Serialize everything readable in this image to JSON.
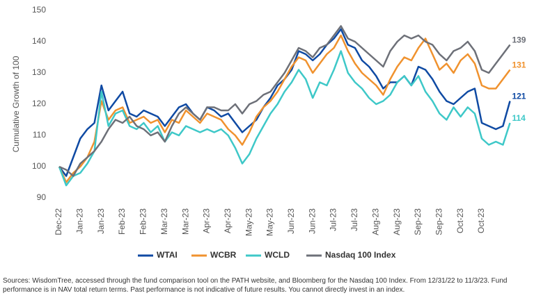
{
  "chart_data": {
    "type": "line",
    "y_axis_label": "Cumulative Growth of 100",
    "categories": [
      "Dec-22",
      null,
      null,
      "Jan-23",
      null,
      null,
      "Jan-23",
      null,
      null,
      "Feb-23",
      null,
      null,
      "Feb-23",
      null,
      null,
      "Mar-23",
      null,
      null,
      "Mar-23",
      null,
      null,
      "Apr-23",
      null,
      null,
      "Apr-23",
      null,
      null,
      "May-23",
      null,
      null,
      "May-23",
      null,
      null,
      "Jun-23",
      null,
      null,
      "Jun-23",
      null,
      null,
      "Jul-23",
      null,
      null,
      "Jul-23",
      null,
      null,
      "Aug-23",
      null,
      null,
      "Aug-23",
      null,
      null,
      "Sep-23",
      null,
      null,
      "Sep-23",
      null,
      null,
      "Oct-23",
      null,
      null,
      "Oct-23",
      null,
      null,
      null,
      null
    ],
    "series": [
      {
        "name": "WTAI",
        "color": "#0f4aa3",
        "values": [
          100,
          97,
          103,
          109,
          112,
          114,
          126,
          118,
          121,
          124,
          117,
          116,
          118,
          117,
          116,
          113,
          116,
          119,
          120,
          117,
          115,
          119,
          118,
          116,
          117,
          114,
          111,
          113,
          115,
          119,
          122,
          126,
          128,
          131,
          137,
          136,
          134,
          136,
          139,
          141,
          144,
          139,
          138,
          134,
          132,
          129,
          125,
          127,
          127,
          129,
          126,
          132,
          131,
          128,
          124,
          121,
          120,
          122,
          124,
          125,
          114,
          113,
          112,
          113,
          121
        ]
      },
      {
        "name": "WCBR",
        "color": "#f0922e",
        "values": [
          100,
          95,
          98,
          100,
          103,
          108,
          121,
          115,
          118,
          119,
          114,
          115,
          116,
          114,
          115,
          111,
          115,
          114,
          118,
          116,
          114,
          117,
          116,
          115,
          112,
          110,
          107,
          111,
          116,
          119,
          121,
          124,
          128,
          132,
          135,
          134,
          130,
          133,
          136,
          138,
          142,
          137,
          133,
          130,
          128,
          126,
          123,
          128,
          132,
          135,
          134,
          138,
          141,
          136,
          131,
          133,
          130,
          134,
          136,
          133,
          126,
          125,
          125,
          128,
          131
        ]
      },
      {
        "name": "WCLD",
        "color": "#3ec8c8",
        "values": [
          100,
          94,
          97,
          98,
          101,
          105,
          124,
          113,
          117,
          118,
          113,
          112,
          114,
          111,
          113,
          108,
          111,
          110,
          113,
          112,
          111,
          112,
          111,
          112,
          110,
          106,
          101,
          104,
          109,
          113,
          117,
          120,
          124,
          127,
          131,
          128,
          122,
          127,
          126,
          131,
          137,
          130,
          127,
          125,
          122,
          120,
          121,
          123,
          127,
          129,
          126,
          129,
          124,
          121,
          117,
          115,
          119,
          116,
          119,
          117,
          109,
          107,
          108,
          107,
          114
        ]
      },
      {
        "name": "Nasdaq 100 Index",
        "color": "#6d7078",
        "values": [
          100,
          99,
          97,
          101,
          103,
          105,
          108,
          112,
          115,
          114,
          116,
          113,
          112,
          110,
          111,
          108,
          113,
          117,
          119,
          117,
          115,
          119,
          119,
          118,
          118,
          120,
          117,
          120,
          121,
          123,
          124,
          127,
          130,
          134,
          138,
          137,
          135,
          138,
          139,
          142,
          145,
          141,
          140,
          138,
          136,
          134,
          132,
          137,
          140,
          142,
          141,
          142,
          140,
          139,
          136,
          134,
          137,
          138,
          140,
          137,
          131,
          130,
          133,
          136,
          139
        ]
      }
    ],
    "ylim": [
      90,
      150
    ],
    "yticks": [
      90,
      100,
      110,
      120,
      130,
      140,
      150
    ],
    "grid": false,
    "legend": "bottom",
    "note": "Sources: WisdomTree, accessed through the fund comparison tool on the PATH website, and Bloomberg for the Nasdaq 100 Index. From 12/31/22 to 11/3/23.  Fund performance is in NAV total return terms. Past performance is not indicative of future results. You cannot directly invest in an index."
  }
}
